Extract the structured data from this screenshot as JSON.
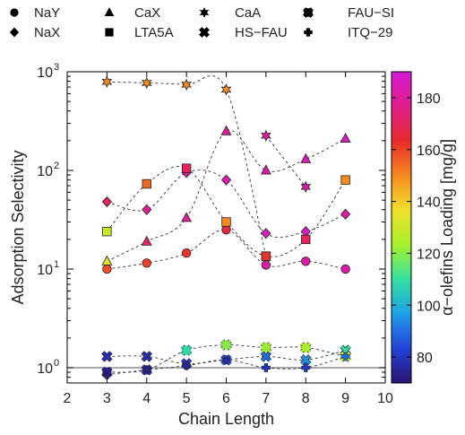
{
  "chart_data": {
    "type": "scatter",
    "xlabel": "Chain Length",
    "ylabel": "Adsorption Selectivity",
    "xlim": [
      2,
      10
    ],
    "ylim": [
      0.7,
      1000
    ],
    "y_scale": "log",
    "x_ticks": [
      2,
      3,
      4,
      5,
      6,
      7,
      8,
      9,
      10
    ],
    "y_ticks": [
      {
        "value": 1,
        "label": "10",
        "sup": "0"
      },
      {
        "value": 10,
        "label": "10",
        "sup": "1"
      },
      {
        "value": 100,
        "label": "10",
        "sup": "2"
      },
      {
        "value": 1000,
        "label": "10",
        "sup": "3"
      }
    ],
    "reference_line": 1,
    "legend_position": "top",
    "colorbar": {
      "label": "α−olefins Loading [mg/g]",
      "range": [
        70,
        190
      ],
      "ticks": [
        80,
        100,
        120,
        140,
        160,
        180
      ],
      "colors": [
        "#2b1470",
        "#2242d8",
        "#1fa0e8",
        "#33e0a0",
        "#a6f02a",
        "#f0e02a",
        "#f58a1f",
        "#e82a2a",
        "#e01e8a",
        "#d61ad6"
      ]
    },
    "series": [
      {
        "name": "NaY",
        "marker": "circle",
        "x": [
          3,
          4,
          5,
          6,
          7,
          8,
          9
        ],
        "y": [
          10,
          11.5,
          14.5,
          25,
          11,
          12,
          10
        ],
        "loading": [
          158,
          160,
          162,
          166,
          180,
          182,
          182
        ]
      },
      {
        "name": "NaX",
        "marker": "diamond",
        "x": [
          3,
          4,
          5,
          6,
          7,
          8,
          9
        ],
        "y": [
          48,
          40,
          95,
          80,
          23,
          24,
          36
        ],
        "loading": [
          170,
          178,
          182,
          184,
          186,
          186,
          182
        ]
      },
      {
        "name": "CaX",
        "marker": "triangle",
        "x": [
          3,
          4,
          5,
          6,
          7,
          8,
          9
        ],
        "y": [
          12,
          19,
          33,
          250,
          100,
          130,
          210
        ],
        "loading": [
          135,
          172,
          178,
          180,
          182,
          184,
          186
        ]
      },
      {
        "name": "LTA5A",
        "marker": "square",
        "x": [
          3,
          4,
          5,
          6,
          7,
          8,
          9
        ],
        "y": [
          24,
          73,
          105,
          30,
          13.5,
          20,
          80
        ],
        "loading": [
          130,
          155,
          170,
          150,
          168,
          170,
          150
        ]
      },
      {
        "name": "CaA",
        "marker": "star",
        "x": [
          7,
          8
        ],
        "y": [
          225,
          68
        ],
        "loading": [
          180,
          182
        ]
      },
      {
        "name": "HS−FAU",
        "marker": "x",
        "x": [
          3,
          4,
          5,
          6,
          7,
          8,
          9
        ],
        "y": [
          1.3,
          1.3,
          1.1,
          1.2,
          1.3,
          1.2,
          1.5
        ],
        "loading": [
          78,
          78,
          82,
          85,
          90,
          95,
          110
        ]
      },
      {
        "name": "FAU−SI",
        "marker": "asterisk",
        "x": [
          3,
          4,
          5,
          6,
          7,
          8,
          9
        ],
        "y": [
          0.9,
          0.95,
          1.5,
          1.7,
          1.6,
          1.6,
          1.3
        ],
        "loading": [
          74,
          76,
          108,
          120,
          122,
          124,
          126
        ]
      },
      {
        "name": "ITQ−29",
        "marker": "plus",
        "x": [
          3,
          4,
          5,
          6,
          7,
          8,
          9
        ],
        "y": [
          0.85,
          0.95,
          1.05,
          1.2,
          1.0,
          1.0,
          1.3
        ],
        "loading": [
          72,
          74,
          76,
          78,
          80,
          82,
          90
        ]
      },
      {
        "name": "",
        "marker": "circle",
        "x": [
          3,
          4,
          5,
          6,
          7
        ],
        "y": [
          790,
          770,
          740,
          660,
          13.5
        ],
        "loading": [
          150,
          150,
          150,
          150,
          162
        ],
        "extra_markers": [
          "star",
          "star",
          "star",
          "star",
          "square"
        ]
      }
    ],
    "legend": [
      {
        "label": "NaY",
        "marker": "circle"
      },
      {
        "label": "NaX",
        "marker": "diamond"
      },
      {
        "label": "CaX",
        "marker": "triangle"
      },
      {
        "label": "LTA5A",
        "marker": "square"
      },
      {
        "label": "CaA",
        "marker": "star"
      },
      {
        "label": "HS−FAU",
        "marker": "x"
      },
      {
        "label": "FAU−SI",
        "marker": "asterisk"
      },
      {
        "label": "ITQ−29",
        "marker": "plus"
      }
    ]
  }
}
